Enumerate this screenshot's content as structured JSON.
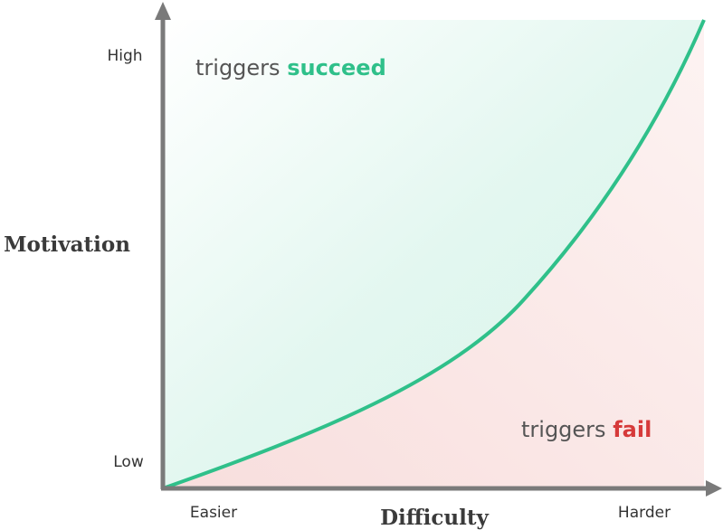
{
  "y_axis": {
    "label": "Motivation",
    "high": "High",
    "low": "Low"
  },
  "x_axis": {
    "label": "Difficulty",
    "low": "Easier",
    "high": "Harder"
  },
  "regions": {
    "success": {
      "prefix": "triggers",
      "emphasis": "succeed"
    },
    "failure": {
      "prefix": "triggers",
      "emphasis": "fail"
    }
  }
}
